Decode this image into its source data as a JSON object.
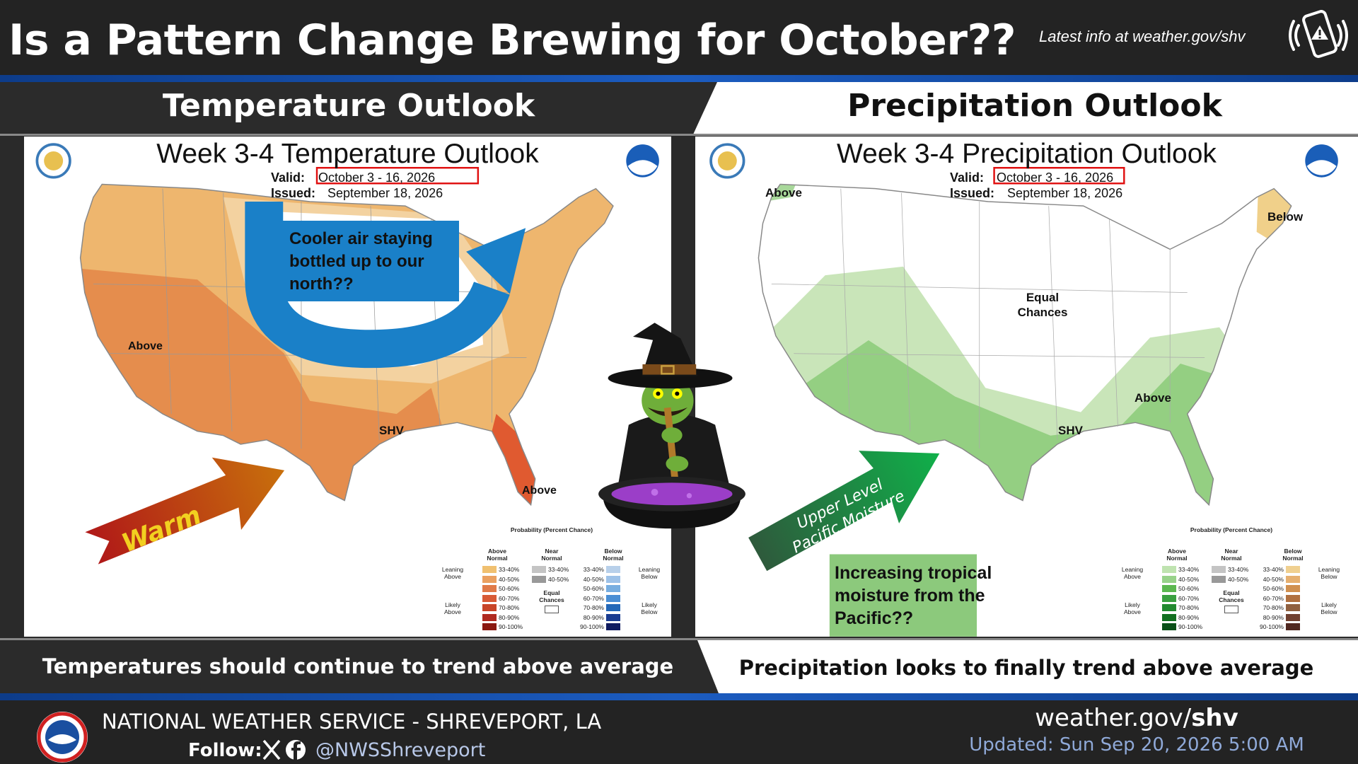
{
  "header": {
    "title": "Is a Pattern Change Brewing for October??",
    "latest_info": "Latest info at weather.gov/shv"
  },
  "panels": [
    {
      "heading": "Temperature Outlook",
      "map": {
        "title": "Week 3-4 Temperature Outlook",
        "valid_label": "Valid:",
        "valid": "October 3 - 16, 2026",
        "issued_label": "Issued:",
        "issued": "September 18, 2026",
        "labels": [
          "Above",
          "SHV",
          "Above"
        ]
      },
      "annotation": "Cooler air staying bottled up to our north??",
      "arrow_text": "Warm",
      "caption": "Temperatures should continue to trend above average"
    },
    {
      "heading": "Precipitation Outlook",
      "map": {
        "title": "Week 3-4 Precipitation Outlook",
        "valid_label": "Valid:",
        "valid": "October 3 - 16, 2026",
        "issued_label": "Issued:",
        "issued": "September 18, 2026",
        "labels": [
          "Above",
          "Below",
          "Equal Chances",
          "Above",
          "SHV"
        ]
      },
      "annotation": "Increasing tropical moisture from the Pacific??",
      "arrow_text": "Upper Level Pacific Moisture",
      "caption": "Precipitation looks to finally trend above average"
    }
  ],
  "legend": {
    "title": "Probability (Percent Chance)",
    "above_header": "Above Normal",
    "near_header": "Near Normal",
    "below_header": "Below Normal",
    "leaning_above": "Leaning Above",
    "likely_above": "Likely Above",
    "leaning_below": "Leaning Below",
    "likely_below": "Likely Below",
    "equal_chances": "Equal Chances",
    "ranges": [
      "33-40%",
      "40-50%",
      "50-60%",
      "60-70%",
      "70-80%",
      "80-90%",
      "90-100%"
    ]
  },
  "footer": {
    "office": "NATIONAL WEATHER SERVICE - SHREVEPORT, LA",
    "follow": "Follow:",
    "handle": "@NWSShreveport",
    "site_prefix": "weather.gov/",
    "site_bold": "shv",
    "updated": "Updated: Sun Sep 20, 2026 5:00 AM"
  }
}
